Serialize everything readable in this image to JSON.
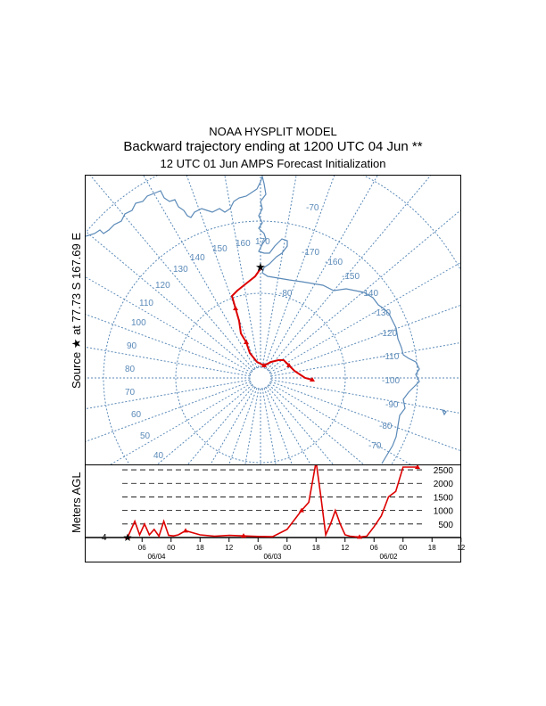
{
  "title": {
    "line1": "NOAA HYSPLIT MODEL",
    "line2": "Backward trajectory ending at 1200 UTC 04 Jun **",
    "line3": "12 UTC 01 Jun    AMPS  Forecast Initialization"
  },
  "source_label": "Source ★ at  77.73 S  167.69 E",
  "colors": {
    "grid": "#5b8ab8",
    "coast": "#5b8ab8",
    "trajectory": "#dd0000"
  },
  "map": {
    "lon_labels": [
      "-70",
      "170",
      "160",
      "150",
      "140",
      "130",
      "120",
      "110",
      "100",
      "90",
      "80",
      "70",
      "60",
      "50",
      "40",
      "-170",
      "-160",
      "-150",
      "-140",
      "-130",
      "-120",
      "-110",
      "-100",
      "-90",
      "-80",
      "-70",
      "-80"
    ],
    "source": {
      "lat": -77.73,
      "lon": 167.69
    }
  },
  "altitude_panel": {
    "ylabel": "Meters AGL",
    "ytick_labels": [
      "2500",
      "2000",
      "1500",
      "1000",
      "500"
    ],
    "ground_label": "4",
    "time_labels": [
      "06",
      "00",
      "18",
      "12",
      "06",
      "00",
      "18",
      "12",
      "06",
      "00",
      "18",
      "12"
    ],
    "date_labels": [
      "06/04",
      "06/03",
      "06/02"
    ]
  },
  "chart_data": {
    "type": "line",
    "ylabel": "Meters AGL",
    "ylim": [
      0,
      2600
    ],
    "yticks": [
      500,
      1000,
      1500,
      2000,
      2500
    ],
    "x_hours_back": [
      0,
      3,
      5,
      7,
      9,
      11,
      13,
      15,
      17,
      19,
      21,
      24,
      30,
      36,
      42,
      48,
      54,
      60,
      66,
      72,
      75,
      78,
      80,
      82,
      84,
      86,
      88,
      90,
      92,
      94,
      96,
      99,
      102,
      105,
      108,
      111,
      114,
      117,
      120
    ],
    "values": [
      4,
      600,
      100,
      500,
      100,
      300,
      50,
      600,
      80,
      60,
      100,
      250,
      100,
      50,
      80,
      60,
      40,
      30,
      300,
      1000,
      1300,
      2800,
      1500,
      100,
      500,
      1000,
      500,
      100,
      50,
      30,
      20,
      50,
      400,
      800,
      1500,
      1700,
      2600,
      2600,
      2600
    ]
  }
}
